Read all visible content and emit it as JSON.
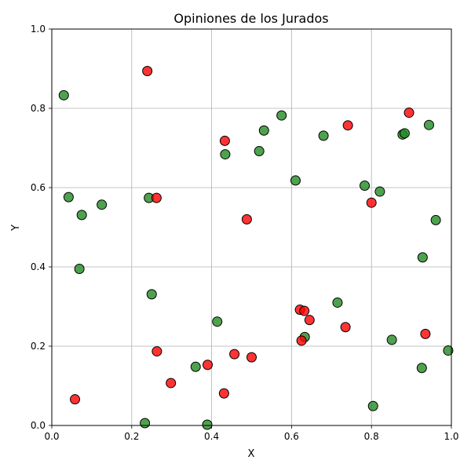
{
  "chart_data": {
    "type": "scatter",
    "title": "Opiniones de los Jurados",
    "xlabel": "X",
    "ylabel": "Y",
    "xlim": [
      0,
      1
    ],
    "ylim": [
      0,
      1
    ],
    "grid": true,
    "x_ticks": [
      "0.0",
      "0.2",
      "0.4",
      "0.6",
      "0.8",
      "1.0"
    ],
    "y_ticks": [
      "0.0",
      "0.2",
      "0.4",
      "0.6",
      "0.8",
      "1.0"
    ],
    "series": [
      {
        "color": "#228b22",
        "points": [
          [
            0.03,
            0.833
          ],
          [
            0.042,
            0.576
          ],
          [
            0.075,
            0.531
          ],
          [
            0.069,
            0.395
          ],
          [
            0.125,
            0.557
          ],
          [
            0.243,
            0.574
          ],
          [
            0.25,
            0.331
          ],
          [
            0.233,
            0.006
          ],
          [
            0.389,
            0.002
          ],
          [
            0.36,
            0.148
          ],
          [
            0.414,
            0.262
          ],
          [
            0.434,
            0.684
          ],
          [
            0.519,
            0.692
          ],
          [
            0.531,
            0.744
          ],
          [
            0.575,
            0.782
          ],
          [
            0.61,
            0.618
          ],
          [
            0.633,
            0.223
          ],
          [
            0.68,
            0.731
          ],
          [
            0.715,
            0.31
          ],
          [
            0.783,
            0.605
          ],
          [
            0.821,
            0.59
          ],
          [
            0.804,
            0.049
          ],
          [
            0.851,
            0.216
          ],
          [
            0.878,
            0.734
          ],
          [
            0.883,
            0.737
          ],
          [
            0.926,
            0.145
          ],
          [
            0.928,
            0.424
          ],
          [
            0.944,
            0.758
          ],
          [
            0.961,
            0.518
          ],
          [
            0.992,
            0.189
          ]
        ]
      },
      {
        "color": "#ff0000",
        "points": [
          [
            0.239,
            0.894
          ],
          [
            0.058,
            0.066
          ],
          [
            0.262,
            0.574
          ],
          [
            0.263,
            0.187
          ],
          [
            0.298,
            0.107
          ],
          [
            0.39,
            0.153
          ],
          [
            0.431,
            0.081
          ],
          [
            0.457,
            0.18
          ],
          [
            0.433,
            0.718
          ],
          [
            0.488,
            0.52
          ],
          [
            0.5,
            0.172
          ],
          [
            0.621,
            0.292
          ],
          [
            0.632,
            0.289
          ],
          [
            0.645,
            0.266
          ],
          [
            0.625,
            0.214
          ],
          [
            0.735,
            0.248
          ],
          [
            0.741,
            0.757
          ],
          [
            0.8,
            0.562
          ],
          [
            0.894,
            0.789
          ],
          [
            0.935,
            0.231
          ]
        ]
      }
    ]
  }
}
